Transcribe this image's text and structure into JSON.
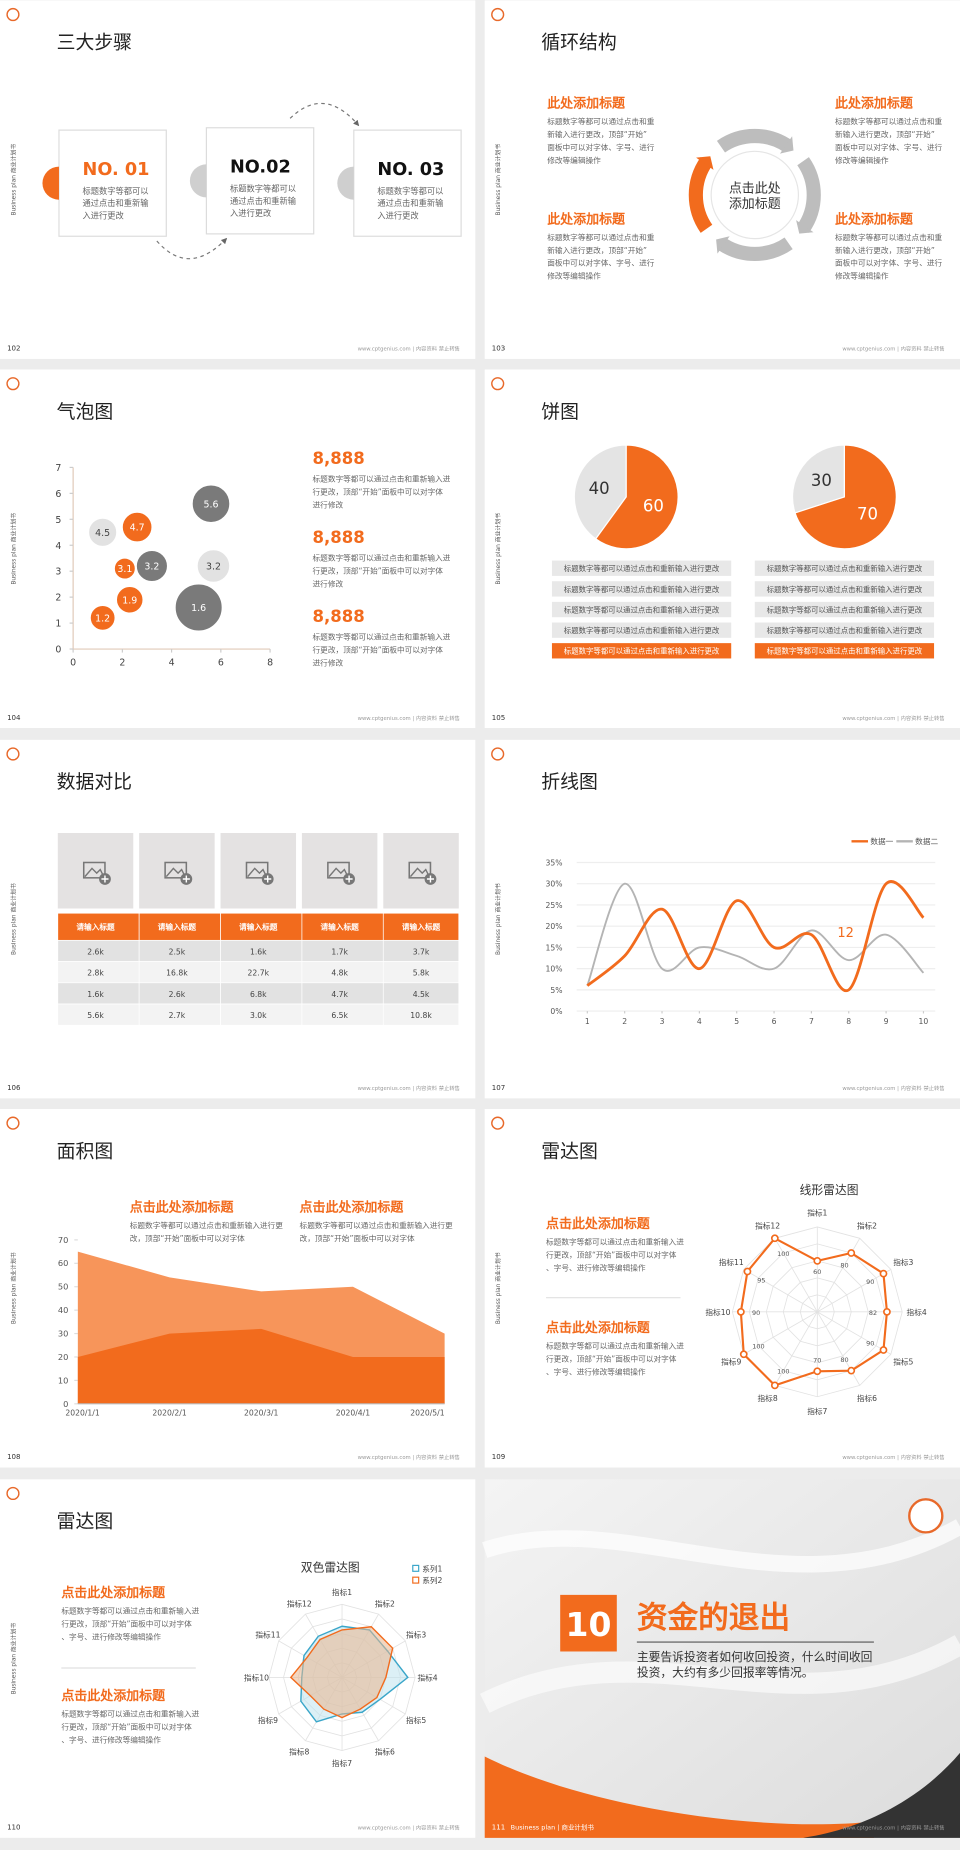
{
  "common": {
    "side_label": "Business plan 商业计划书",
    "footer": "www.cptgenius.com | 内容资料 禁止转售"
  },
  "slides": [
    {
      "page": "102",
      "title": "三大步骤",
      "steps": [
        {
          "label": "NO. 01",
          "text": "标题数字等都可以通过点击和重新输入进行更改"
        },
        {
          "label": "NO.02",
          "text": "标题数字等都可以通过点击和重新输入进行更改"
        },
        {
          "label": "NO. 03",
          "text": "标题数字等都可以通过点击和重新输入进行更改"
        }
      ]
    },
    {
      "page": "103",
      "title": "循环结构",
      "center": "点击此处添加标题",
      "items": [
        {
          "heading": "此处添加标题",
          "text": "标题数字等都可以通过点击和重新输入进行更改，顶部“开始”面板中可以对字体、字号、进行修改等编辑操作"
        },
        {
          "heading": "此处添加标题",
          "text": "标题数字等都可以通过点击和重新输入进行更改，顶部“开始”面板中可以对字体、字号、进行修改等编辑操作"
        },
        {
          "heading": "此处添加标题",
          "text": "标题数字等都可以通过点击和重新输入进行更改，顶部“开始”面板中可以对字体、字号、进行修改等编辑操作"
        },
        {
          "heading": "此处添加标题",
          "text": "标题数字等都可以通过点击和重新输入进行更改，顶部“开始”面板中可以对字体、字号、进行修改等编辑操作"
        }
      ]
    },
    {
      "page": "104",
      "title": "气泡图",
      "chart": {
        "type": "bubble",
        "xlim": [
          0,
          8
        ],
        "xticks": [
          0,
          2,
          4,
          6,
          8
        ],
        "ylim": [
          0,
          7
        ],
        "yticks": [
          0,
          1,
          2,
          3,
          4,
          5,
          6,
          7
        ],
        "series": [
          {
            "color": "#f26b1d",
            "x": [
              1.2,
              2.3,
              2.1,
              2.6
            ],
            "y": [
              1.2,
              1.9,
              3.1,
              4.7
            ],
            "sizes": [
              7,
              8,
              5,
              10
            ]
          },
          {
            "color": "#7a7a7a",
            "x": [
              3.2,
              5.6,
              5.1
            ],
            "y": [
              3.2,
              5.6,
              1.6
            ],
            "sizes": [
              11,
              16,
              25
            ]
          },
          {
            "color": "#e2e2e2",
            "x": [
              1.2,
              5.7
            ],
            "y": [
              4.5,
              3.2
            ],
            "sizes": [
              9,
              12
            ]
          }
        ]
      },
      "notes": [
        {
          "value": "8,888",
          "text": "标题数字等都可以通过点击和重新输入进行更改，顶部“开始”面板中可以对字体进行修改"
        },
        {
          "value": "8,888",
          "text": "标题数字等都可以通过点击和重新输入进行更改，顶部“开始”面板中可以对字体进行修改"
        },
        {
          "value": "8,888",
          "text": "标题数字等都可以通过点击和重新输入进行更改，顶部“开始”面板中可以对字体进行修改"
        }
      ]
    },
    {
      "page": "105",
      "title": "饼图",
      "pies": [
        {
          "type": "pie",
          "values": [
            40,
            60
          ],
          "colors": [
            "#e4e4e4",
            "#f26b1d"
          ]
        },
        {
          "type": "pie",
          "values": [
            30,
            70
          ],
          "colors": [
            "#e4e4e4",
            "#f26b1d"
          ]
        }
      ],
      "lists": [
        [
          "标题数字等都可以通过点击和重新输入进行更改",
          "标题数字等都可以通过点击和重新输入进行更改",
          "标题数字等都可以通过点击和重新输入进行更改",
          "标题数字等都可以通过点击和重新输入进行更改",
          "标题数字等都可以通过点击和重新输入进行更改"
        ],
        [
          "标题数字等都可以通过点击和重新输入进行更改",
          "标题数字等都可以通过点击和重新输入进行更改",
          "标题数字等都可以通过点击和重新输入进行更改",
          "标题数字等都可以通过点击和重新输入进行更改",
          "标题数字等都可以通过点击和重新输入进行更改"
        ]
      ]
    },
    {
      "page": "106",
      "title": "数据对比",
      "table": {
        "header": [
          "请输入标题",
          "请输入标题",
          "请输入标题",
          "请输入标题",
          "请输入标题"
        ],
        "rows": [
          [
            "2.6k",
            "2.5k",
            "1.6k",
            "1.7k",
            "3.7k"
          ],
          [
            "2.8k",
            "16.8k",
            "22.7k",
            "4.8k",
            "5.8k"
          ],
          [
            "1.6k",
            "2.6k",
            "6.8k",
            "4.7k",
            "4.5k"
          ],
          [
            "5.6k",
            "2.7k",
            "3.0k",
            "6.5k",
            "10.8k"
          ]
        ]
      }
    },
    {
      "page": "107",
      "title": "折线图",
      "chart": {
        "type": "line",
        "x": [
          1,
          2,
          3,
          4,
          5,
          6,
          7,
          8,
          9,
          10
        ],
        "xlim": [
          1,
          10
        ],
        "xticks": [
          1,
          2,
          3,
          4,
          5,
          6,
          7,
          8,
          9,
          10
        ],
        "ylim": [
          0,
          35
        ],
        "yticks": [
          {
            "value": 0,
            "label": "0%"
          },
          {
            "value": 5,
            "label": "5%"
          },
          {
            "value": 10,
            "label": "10%"
          },
          {
            "value": 15,
            "label": "15%"
          },
          {
            "value": 20,
            "label": "20%"
          },
          {
            "value": 25,
            "label": "25%"
          },
          {
            "value": 30,
            "label": "30%"
          },
          {
            "value": 35,
            "label": "35%"
          }
        ],
        "grid": true,
        "annotation": "12",
        "series": [
          {
            "name": "数据一",
            "color": "#f26b1d",
            "values": [
              6,
              13,
              24,
              10,
              26,
              15,
              18,
              5,
              30,
              22
            ]
          },
          {
            "name": "数据二",
            "color": "#b4b4b4",
            "values": [
              6,
              30,
              10,
              15,
              13,
              10,
              19,
              12,
              18,
              9
            ]
          }
        ]
      }
    },
    {
      "page": "108",
      "title": "面积图",
      "notes": [
        {
          "heading": "点击此处添加标题",
          "text": "标题数字等都可以通过点击和重新输入进行更改，顶部“开始”面板中可以对字体"
        },
        {
          "heading": "点击此处添加标题",
          "text": "标题数字等都可以通过点击和重新输入进行更改，顶部“开始”面板中可以对字体"
        }
      ],
      "chart": {
        "type": "area",
        "categories": [
          "2020/1/1",
          "2020/2/1",
          "2020/3/1",
          "2020/4/1",
          "2020/5/1"
        ],
        "ylim": [
          0,
          70
        ],
        "yticks": [
          0,
          10,
          20,
          30,
          40,
          50,
          60,
          70
        ],
        "series": [
          {
            "color": "#f7955a",
            "values": [
              65,
              54,
              48,
              50,
              30
            ]
          },
          {
            "color": "#f26b1d",
            "values": [
              20,
              30,
              32,
              20,
              20
            ]
          }
        ]
      }
    },
    {
      "page": "109",
      "title": "雷达图",
      "notes": [
        {
          "heading": "点击此处添加标题",
          "text": "标题数字等都可以通过点击和重新输入进行更改，顶部“开始”面板中可以对字体、字号、进行修改等编辑操作"
        },
        {
          "heading": "点击此处添加标题",
          "text": "标题数字等都可以通过点击和重新输入进行更改，顶部“开始”面板中可以对字体、字号、进行修改等编辑操作"
        }
      ],
      "chart": {
        "type": "radar",
        "title": "线形雷达图",
        "categories": [
          "指标1",
          "指标2",
          "指标3",
          "指标4",
          "指标5",
          "指标6",
          "指标7",
          "指标8",
          "指标9",
          "指标10",
          "指标11",
          "指标12"
        ],
        "rlim": [
          0,
          100
        ],
        "rticks": [
          20,
          40,
          60,
          80,
          100
        ],
        "series": [
          {
            "color": "#f26b1d",
            "values": [
              60,
              80,
              90,
              82,
              90,
              80,
              70,
              100,
              100,
              90,
              95,
              100
            ]
          }
        ]
      }
    },
    {
      "page": "110",
      "title": "雷达图",
      "notes": [
        {
          "heading": "点击此处添加标题",
          "text": "标题数字等都可以通过点击和重新输入进行更改，顶部“开始”面板中可以对字体、字号、进行修改等编辑操作"
        },
        {
          "heading": "点击此处添加标题",
          "text": "标题数字等都可以通过点击和重新输入进行更改，顶部“开始”面板中可以对字体、字号、进行修改等编辑操作"
        }
      ],
      "chart": {
        "type": "radar",
        "title": "双色雷达图",
        "categories": [
          "指标1",
          "指标2",
          "指标3",
          "指标4",
          "指标5",
          "指标6",
          "指标7",
          "指标8",
          "指标9",
          "指标10",
          "指标11",
          "指标12"
        ],
        "rlim": [
          0,
          100
        ],
        "rticks": [
          20,
          40,
          60,
          80,
          100
        ],
        "series": [
          {
            "name": "系列1",
            "color": "#3aa6c9",
            "values": [
              70,
              75,
              72,
              90,
              60,
              55,
              50,
              70,
              65,
              55,
              60,
              65
            ]
          },
          {
            "name": "系列2",
            "color": "#f26b1d",
            "values": [
              65,
              80,
              80,
              60,
              55,
              50,
              55,
              50,
              50,
              70,
              55,
              60
            ]
          }
        ]
      }
    },
    {
      "page": "111",
      "number": "10",
      "title": "资金的退出",
      "text": "主要告诉投资者如何收回投资，什么时间收回投资，大约有多少回报率等情况。",
      "footer_label": "Business plan | 商业计划书"
    }
  ]
}
